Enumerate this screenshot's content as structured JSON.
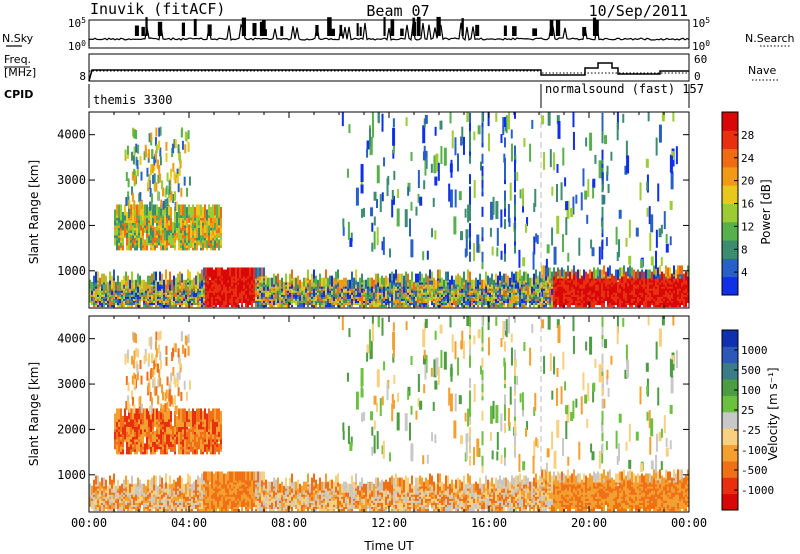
{
  "header": {
    "station": "Inuvik (fitACF)",
    "beam": "Beam 07",
    "date": "10/Sep/2011"
  },
  "top_panel_labels": {
    "nsky": "N.Sky",
    "nsky_top": "10^5",
    "nsky_bottom": "10^0",
    "nsearch": "N.Search",
    "nsearch_top": "10^5",
    "nsearch_bottom": "10^0",
    "freq_line1": "Freq.",
    "freq_line2": "[MHz]",
    "freq_value": "8",
    "nave": "Nave",
    "nave_top": "60",
    "nave_bottom": "0",
    "cpid": "CPID",
    "cpid_left": "themis 3300",
    "cpid_right": "normalsound (fast) 157"
  },
  "chart_data": [
    {
      "type": "heatmap",
      "panel": "power",
      "ylabel": "Slant Range [km]",
      "yticks": [
        "1000",
        "2000",
        "3000",
        "4000"
      ],
      "ylim": [
        180,
        4500
      ],
      "xlim": [
        0,
        24
      ],
      "colorbar_label": "Power [dB]",
      "colorbar_ticks": [
        "4",
        "8",
        "12",
        "16",
        "20",
        "24",
        "28"
      ],
      "colorbar_colors": [
        "#1030e8",
        "#2860c8",
        "#3c8c70",
        "#58b04c",
        "#9ccc34",
        "#e8c81c",
        "#f09a18",
        "#f06c14",
        "#e83010",
        "#d80808"
      ]
    },
    {
      "type": "heatmap",
      "panel": "velocity",
      "ylabel": "Slant Range [km]",
      "yticks": [
        "1000",
        "2000",
        "3000",
        "4000"
      ],
      "ylim": [
        180,
        4500
      ],
      "xlim": [
        0,
        24
      ],
      "xticks": [
        "00:00",
        "04:00",
        "08:00",
        "12:00",
        "16:00",
        "20:00",
        "00:00"
      ],
      "xlabel": "Time UT",
      "colorbar_label": "Velocity [m s⁻¹]",
      "colorbar_ticks": [
        "1000",
        "500",
        "100",
        "25",
        "-25",
        "-100",
        "-500",
        "-1000"
      ],
      "colorbar_colors": [
        "#1030b0",
        "#2c58b8",
        "#3c7c88",
        "#4c9c44",
        "#6cc040",
        "#c8c8c8",
        "#f8d080",
        "#f4a030",
        "#f07018",
        "#e83010",
        "#d80808"
      ]
    }
  ]
}
